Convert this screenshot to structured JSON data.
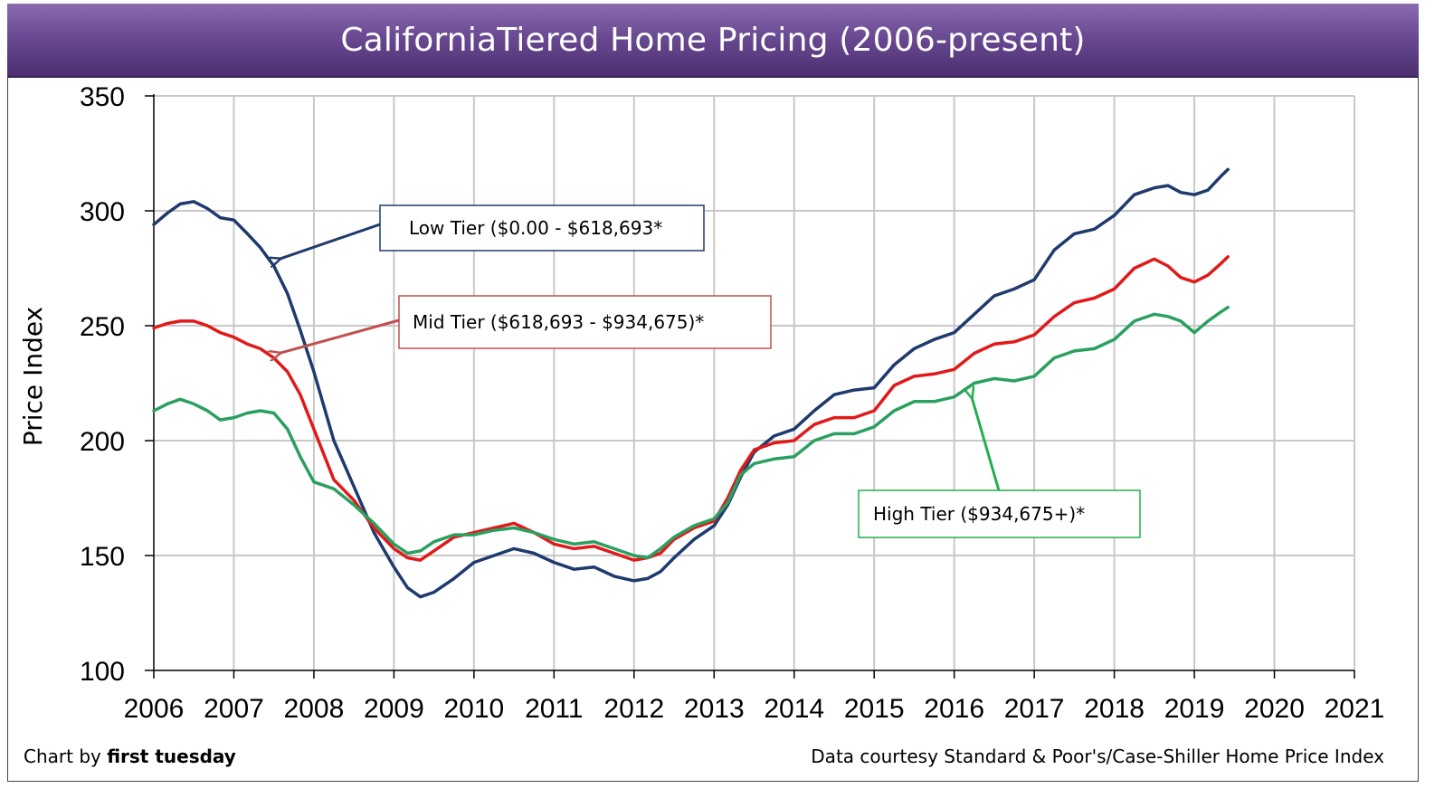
{
  "chart_data": {
    "type": "line",
    "title": "CaliforniaTiered Home Pricing (2006-present)",
    "ylabel": "Price Index",
    "xlabel": "",
    "xlim": [
      2006,
      2021
    ],
    "ylim": [
      100,
      350
    ],
    "x_ticks": [
      "2006",
      "2007",
      "2008",
      "2009",
      "2010",
      "2011",
      "2012",
      "2013",
      "2014",
      "2015",
      "2016",
      "2017",
      "2018",
      "2019",
      "2020",
      "2021"
    ],
    "y_ticks": [
      "100",
      "150",
      "200",
      "250",
      "300",
      "350"
    ],
    "grid": true,
    "series": [
      {
        "name": "Low Tier ($0.00 - $618,693*",
        "color": "#1f3a6e",
        "x": [
          2006.0,
          2006.17,
          2006.33,
          2006.5,
          2006.67,
          2006.83,
          2007.0,
          2007.17,
          2007.33,
          2007.5,
          2007.67,
          2007.83,
          2008.0,
          2008.25,
          2008.5,
          2008.75,
          2009.0,
          2009.17,
          2009.33,
          2009.5,
          2009.75,
          2010.0,
          2010.25,
          2010.5,
          2010.75,
          2011.0,
          2011.25,
          2011.5,
          2011.75,
          2012.0,
          2012.17,
          2012.33,
          2012.5,
          2012.75,
          2013.0,
          2013.17,
          2013.33,
          2013.5,
          2013.75,
          2014.0,
          2014.25,
          2014.5,
          2014.75,
          2015.0,
          2015.25,
          2015.5,
          2015.75,
          2016.0,
          2016.25,
          2016.5,
          2016.75,
          2017.0,
          2017.25,
          2017.5,
          2017.75,
          2018.0,
          2018.25,
          2018.5,
          2018.67,
          2018.83,
          2019.0,
          2019.17,
          2019.33,
          2019.42
        ],
        "y": [
          294,
          299,
          303,
          304,
          301,
          297,
          296,
          290,
          284,
          276,
          264,
          248,
          230,
          200,
          180,
          160,
          145,
          136,
          132,
          134,
          140,
          147,
          150,
          153,
          151,
          147,
          144,
          145,
          141,
          139,
          140,
          143,
          149,
          157,
          163,
          172,
          184,
          195,
          202,
          205,
          213,
          220,
          222,
          223,
          233,
          240,
          244,
          247,
          255,
          263,
          266,
          270,
          283,
          290,
          292,
          298,
          307,
          310,
          311,
          308,
          307,
          309,
          315,
          318
        ]
      },
      {
        "name": "Mid Tier ($618,693 - $934,675)*",
        "color": "#e01a1a",
        "x": [
          2006.0,
          2006.17,
          2006.33,
          2006.5,
          2006.67,
          2006.83,
          2007.0,
          2007.17,
          2007.33,
          2007.5,
          2007.67,
          2007.83,
          2008.0,
          2008.25,
          2008.5,
          2008.75,
          2009.0,
          2009.17,
          2009.33,
          2009.5,
          2009.75,
          2010.0,
          2010.25,
          2010.5,
          2010.75,
          2011.0,
          2011.25,
          2011.5,
          2011.75,
          2012.0,
          2012.17,
          2012.33,
          2012.5,
          2012.75,
          2013.0,
          2013.17,
          2013.33,
          2013.5,
          2013.75,
          2014.0,
          2014.25,
          2014.5,
          2014.75,
          2015.0,
          2015.25,
          2015.5,
          2015.75,
          2016.0,
          2016.25,
          2016.5,
          2016.75,
          2017.0,
          2017.25,
          2017.5,
          2017.75,
          2018.0,
          2018.25,
          2018.5,
          2018.67,
          2018.83,
          2019.0,
          2019.17,
          2019.33,
          2019.42
        ],
        "y": [
          249,
          251,
          252,
          252,
          250,
          247,
          245,
          242,
          240,
          236,
          230,
          220,
          205,
          183,
          174,
          162,
          153,
          149,
          148,
          152,
          158,
          160,
          162,
          164,
          160,
          155,
          153,
          154,
          151,
          148,
          149,
          151,
          157,
          162,
          165,
          175,
          187,
          196,
          199,
          200,
          207,
          210,
          210,
          213,
          224,
          228,
          229,
          231,
          238,
          242,
          243,
          246,
          254,
          260,
          262,
          266,
          275,
          279,
          276,
          271,
          269,
          272,
          277,
          280
        ]
      },
      {
        "name": "High Tier ($934,675+)*",
        "color": "#2aa060",
        "x": [
          2006.0,
          2006.17,
          2006.33,
          2006.5,
          2006.67,
          2006.83,
          2007.0,
          2007.17,
          2007.33,
          2007.5,
          2007.67,
          2007.83,
          2008.0,
          2008.25,
          2008.5,
          2008.75,
          2009.0,
          2009.17,
          2009.33,
          2009.5,
          2009.75,
          2010.0,
          2010.25,
          2010.5,
          2010.75,
          2011.0,
          2011.25,
          2011.5,
          2011.75,
          2012.0,
          2012.17,
          2012.33,
          2012.5,
          2012.75,
          2013.0,
          2013.17,
          2013.33,
          2013.5,
          2013.75,
          2014.0,
          2014.25,
          2014.5,
          2014.75,
          2015.0,
          2015.25,
          2015.5,
          2015.75,
          2016.0,
          2016.25,
          2016.5,
          2016.75,
          2017.0,
          2017.25,
          2017.5,
          2017.75,
          2018.0,
          2018.25,
          2018.5,
          2018.67,
          2018.83,
          2019.0,
          2019.17,
          2019.33,
          2019.42
        ],
        "y": [
          213,
          216,
          218,
          216,
          213,
          209,
          210,
          212,
          213,
          212,
          205,
          193,
          182,
          179,
          172,
          164,
          155,
          151,
          152,
          156,
          159,
          159,
          161,
          162,
          160,
          157,
          155,
          156,
          153,
          150,
          149,
          153,
          158,
          163,
          166,
          173,
          185,
          190,
          192,
          193,
          200,
          203,
          203,
          206,
          213,
          217,
          217,
          219,
          225,
          227,
          226,
          228,
          236,
          239,
          240,
          244,
          252,
          255,
          254,
          252,
          247,
          252,
          256,
          258
        ]
      }
    ],
    "annotations": [
      {
        "text": "Low Tier ($0.00 - $618,693*",
        "series": 0,
        "color": "#1f3a6e",
        "arrow_target": [
          2007.5,
          279
        ]
      },
      {
        "text": "Mid Tier ($618,693 - $934,675)*",
        "series": 1,
        "color": "#c0504d",
        "arrow_target": [
          2007.5,
          238
        ]
      },
      {
        "text": "High Tier ($934,675+)*",
        "series": 2,
        "color": "#22b04c",
        "arrow_target": [
          2016.15,
          219
        ]
      }
    ]
  },
  "footer": {
    "credit_prefix": "Chart by ",
    "credit_brand": "first tuesday",
    "source": "Data courtesy Standard & Poor's/Case-Shiller Home Price Index"
  }
}
